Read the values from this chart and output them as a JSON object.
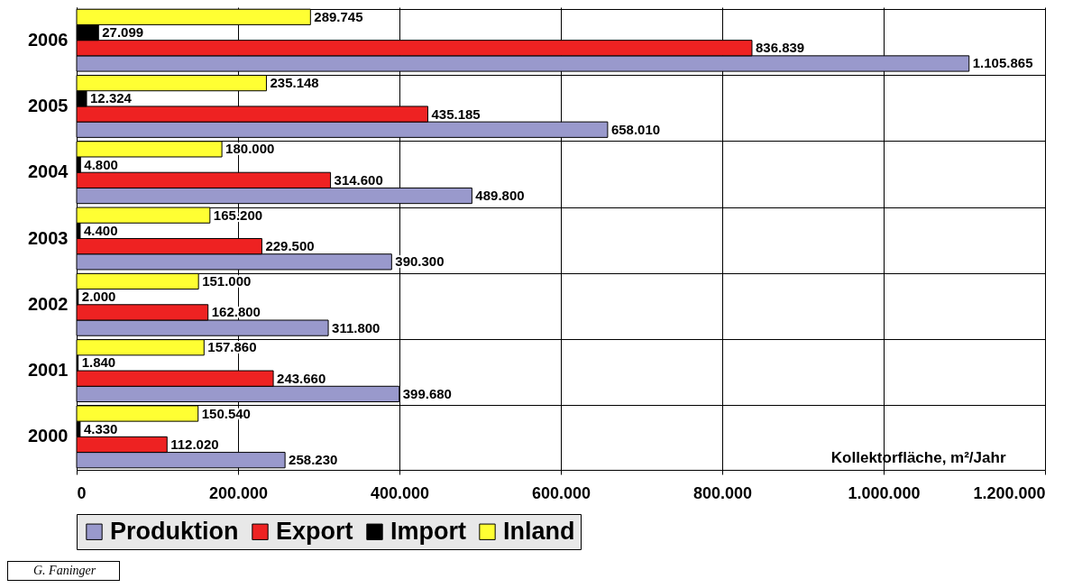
{
  "chart_data": {
    "type": "bar",
    "orientation": "horizontal",
    "xlabel": "Kollektorfläche, m²/Jahr",
    "categories": [
      "2006",
      "2005",
      "2004",
      "2003",
      "2002",
      "2001",
      "2000"
    ],
    "series": [
      {
        "name": "Produktion",
        "color": "#9999cc",
        "values": [
          1105865,
          658010,
          489800,
          390300,
          311800,
          399680,
          258230
        ],
        "value_labels": [
          "1.105.865",
          "658.010",
          "489.800",
          "390.300",
          "311.800",
          "399.680",
          "258.230"
        ]
      },
      {
        "name": "Export",
        "color": "#ee2222",
        "values": [
          836839,
          435185,
          314600,
          229500,
          162800,
          243660,
          112020
        ],
        "value_labels": [
          "836.839",
          "435.185",
          "314.600",
          "229.500",
          "162.800",
          "243.660",
          "112.020"
        ]
      },
      {
        "name": "Import",
        "color": "#000000",
        "values": [
          27099,
          12324,
          4800,
          4400,
          2000,
          1840,
          4330
        ],
        "value_labels": [
          "27.099",
          "12.324",
          "4.800",
          "4.400",
          "2.000",
          "1.840",
          "4.330"
        ]
      },
      {
        "name": "Inland",
        "color": "#ffff33",
        "values": [
          289745,
          235148,
          180000,
          165200,
          151000,
          157860,
          150540
        ],
        "value_labels": [
          "289.745",
          "235.148",
          "180.000",
          "165.200",
          "151.000",
          "157.860",
          "150.540"
        ]
      }
    ],
    "xlim": [
      0,
      1200000
    ],
    "xticks": [
      0,
      {
        "value": 200000,
        "label": "200.000"
      },
      {
        "value": 400000,
        "label": "400.000"
      },
      {
        "value": 600000,
        "label": "600.000"
      },
      {
        "value": 800000,
        "label": "800.000"
      },
      {
        "value": 1000000,
        "label": "1.000.000"
      },
      {
        "value": 1200000,
        "label": "1.200.000"
      }
    ],
    "grid": true,
    "legend": "bottom",
    "annotations": [
      "G. Faninger"
    ]
  }
}
